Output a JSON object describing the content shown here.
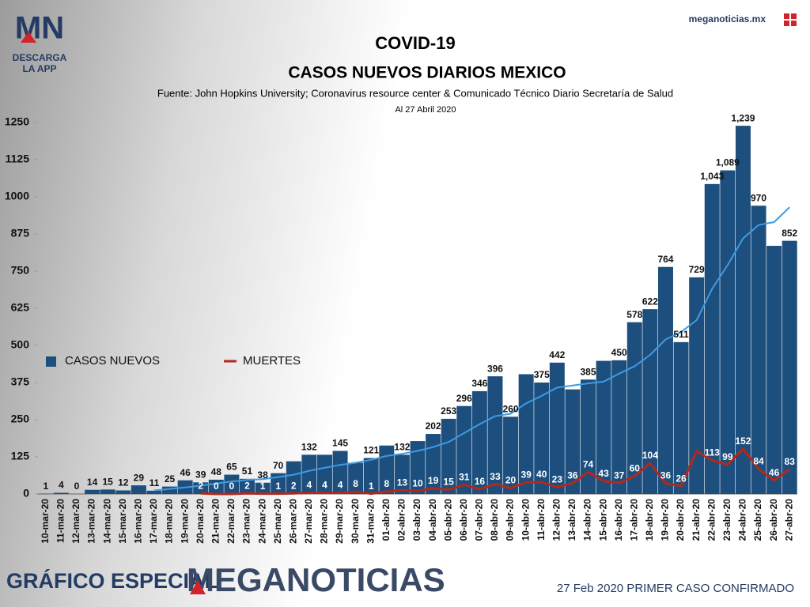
{
  "branding": {
    "logo": "MN",
    "app": [
      "DESCARGA",
      "LA APP"
    ],
    "site": "meganoticias.mx",
    "footer_left": "GRÁFICO ESPECIAL",
    "footer_brand": "MEGANOTICIAS"
  },
  "chart_data": {
    "type": "bar",
    "title": "COVID-19",
    "subtitle": "CASOS NUEVOS DIARIOS MEXICO",
    "source": "Fuente: John Hopkins University; Coronavirus resource center & Comunicado Técnico Diario Secretaría de Salud",
    "date_note": "Al 27 Abril 2020",
    "annotation": "27 Feb 2020 PRIMER CASO CONFIRMADO",
    "categories": [
      "10-mar-20",
      "11-mar-20",
      "12-mar-20",
      "13-mar-20",
      "14-mar-20",
      "15-mar-20",
      "16-mar-20",
      "17-mar-20",
      "18-mar-20",
      "19-mar-20",
      "20-mar-20",
      "21-mar-20",
      "22-mar-20",
      "23-mar-20",
      "24-mar-20",
      "25-mar-20",
      "26-mar-20",
      "27-mar-20",
      "28-mar-20",
      "29-mar-20",
      "30-mar-20",
      "31-mar-20",
      "01-abr-20",
      "02-abr-20",
      "03-abr-20",
      "04-abr-20",
      "05-abr-20",
      "06-abr-20",
      "07-abr-20",
      "08-abr-20",
      "09-abr-20",
      "10-abr-20",
      "11-abr-20",
      "12-abr-20",
      "13-abr-20",
      "14-abr-20",
      "15-abr-20",
      "16-abr-20",
      "17-abr-20",
      "18-abr-20",
      "19-abr-20",
      "20-abr-20",
      "21-abr-20",
      "22-abr-20",
      "23-abr-20",
      "24-abr-20",
      "25-abr-20",
      "26-abr-20",
      "27-abr-20"
    ],
    "series": [
      {
        "name": "CASOS NUEVOS",
        "color": "#1d4f7e",
        "kind": "bar",
        "values": [
          1,
          4,
          0,
          14,
          15,
          12,
          29,
          11,
          25,
          46,
          39,
          48,
          65,
          51,
          38,
          70,
          110,
          132,
          132,
          145,
          105,
          121,
          163,
          132,
          178,
          202,
          253,
          296,
          346,
          396,
          260,
          403,
          375,
          442,
          352,
          385,
          448,
          450,
          578,
          622,
          764,
          511,
          729,
          1043,
          1089,
          1239,
          970,
          835,
          852
        ],
        "value_labels": [
          "1",
          "4",
          "0",
          "14",
          "15",
          "12",
          "29",
          "11",
          "25",
          "46",
          "39",
          "48",
          "65",
          "51",
          "38",
          "70",
          null,
          "132",
          null,
          "145",
          null,
          "121",
          null,
          "132",
          null,
          "202",
          "253",
          "296",
          "346",
          "396",
          "260",
          null,
          "375",
          "442",
          null,
          "385",
          null,
          "450",
          "578",
          "622",
          "764",
          "511",
          "729",
          "1,043",
          "1,089",
          "1,239",
          "970",
          null,
          "852"
        ]
      },
      {
        "name": "MUERTES",
        "color": "#b3281c",
        "kind": "line",
        "values": [
          null,
          null,
          null,
          null,
          null,
          null,
          null,
          null,
          null,
          null,
          2,
          0,
          0,
          2,
          1,
          1,
          2,
          4,
          4,
          4,
          8,
          1,
          8,
          13,
          10,
          19,
          15,
          31,
          16,
          33,
          20,
          39,
          40,
          23,
          36,
          74,
          43,
          37,
          60,
          104,
          36,
          26,
          145,
          113,
          99,
          152,
          84,
          46,
          83
        ],
        "value_labels": [
          null,
          null,
          null,
          null,
          null,
          null,
          null,
          null,
          null,
          null,
          "2",
          "0",
          "0",
          "2",
          "1",
          "1",
          "2",
          "4",
          "4",
          "4",
          "8",
          "1",
          "8",
          "13",
          "10",
          "19",
          "15",
          "31",
          "16",
          "33",
          "20",
          "39",
          "40",
          "23",
          "36",
          "74",
          "43",
          "37",
          "60",
          "104",
          "36",
          "26",
          null,
          "113",
          "99",
          "152",
          "84",
          "46",
          "83"
        ]
      },
      {
        "color": "#3d9be3",
        "kind": "line",
        "values": [
          null,
          null,
          null,
          null,
          null,
          null,
          null,
          12,
          17,
          22,
          28,
          35,
          42,
          47,
          50,
          57,
          65,
          78,
          88,
          98,
          105,
          115,
          128,
          135,
          145,
          158,
          175,
          205,
          235,
          262,
          270,
          305,
          330,
          358,
          365,
          372,
          378,
          405,
          430,
          468,
          520,
          545,
          585,
          690,
          770,
          860,
          905,
          915,
          965
        ]
      }
    ],
    "ylim": [
      0,
      1250
    ],
    "yticks": [
      0,
      125,
      250,
      375,
      500,
      625,
      750,
      875,
      1000,
      1125,
      1250
    ],
    "legend": "inside-left"
  }
}
